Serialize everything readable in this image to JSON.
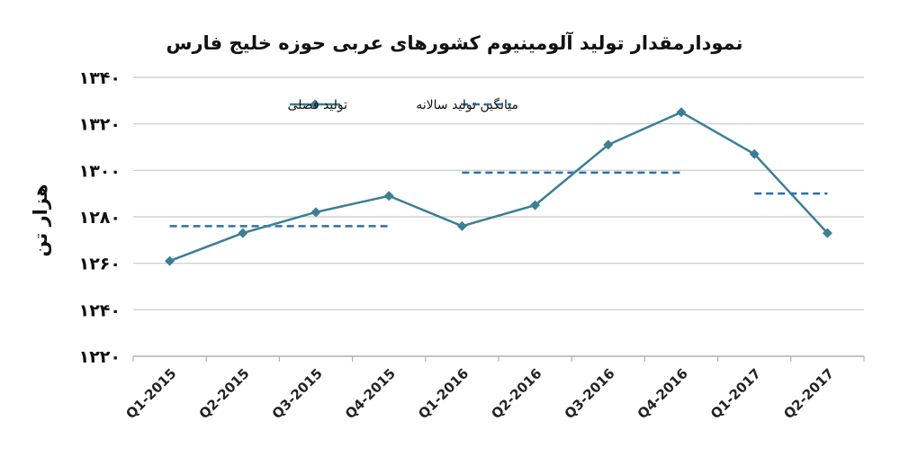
{
  "chart_data": {
    "type": "line",
    "title": "نمودارمقدار تولید آلومینیوم کشورهای عربی حوزه خلیج فارس",
    "ylabel": "هزار تن",
    "xlabel": "",
    "ylim": [
      1220,
      1340
    ],
    "yticks": [
      1220,
      1240,
      1260,
      1280,
      1300,
      1320,
      1340
    ],
    "ytick_labels": [
      "۱۲۲۰",
      "۱۲۴۰",
      "۱۲۶۰",
      "۱۲۸۰",
      "۱۳۰۰",
      "۱۳۲۰",
      "۱۳۴۰"
    ],
    "categories": [
      "Q1-2015",
      "Q2-2015",
      "Q3-2015",
      "Q4-2015",
      "Q1-2016",
      "Q2-2016",
      "Q3-2016",
      "Q4-2016",
      "Q1-2017",
      "Q2-2017"
    ],
    "grid": true,
    "legend_position": "top",
    "series": [
      {
        "name": "تولید فصلی",
        "style": "line-diamond",
        "color": "#3a7f96",
        "values": [
          1261,
          1273,
          1282,
          1289,
          1276,
          1285,
          1311,
          1325,
          1307,
          1273
        ]
      },
      {
        "name": "میانگین تولید سالانه",
        "style": "dashed",
        "color": "#2f6ea8",
        "segments": [
          {
            "from": "Q1-2015",
            "to": "Q4-2015",
            "value": 1276
          },
          {
            "from": "Q1-2016",
            "to": "Q4-2016",
            "value": 1299
          },
          {
            "from": "Q1-2017",
            "to": "Q2-2017",
            "value": 1290
          }
        ]
      }
    ]
  }
}
